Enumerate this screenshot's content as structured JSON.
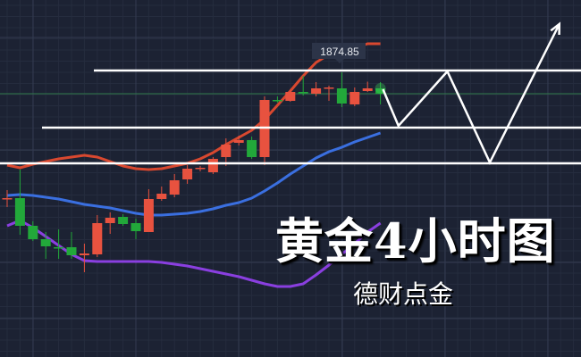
{
  "chart_data": {
    "type": "candlestick",
    "title": "黄金4小时图",
    "subtitle": "德财点金",
    "price_label": "1874.85",
    "current_price": 1865.25,
    "grid": true,
    "colors": {
      "background": "#1c2233",
      "up": "#e8523f",
      "down": "#22a83a",
      "upper_band": "#d9482f",
      "middle_band": "#3a6fe0",
      "lower_band": "#8a3fe0",
      "annotation": "#ffffff",
      "current_price_line": "#2f7a4a"
    },
    "candles": [
      {
        "o": 1818.05,
        "h": 1822.05,
        "l": 1814.45,
        "c": 1818.45
      },
      {
        "o": 1818.45,
        "h": 1831.25,
        "l": 1802.05,
        "c": 1806.05
      },
      {
        "o": 1806.05,
        "h": 1808.05,
        "l": 1799.25,
        "c": 1800.05
      },
      {
        "o": 1800.05,
        "h": 1803.25,
        "l": 1791.25,
        "c": 1796.85
      },
      {
        "o": 1796.45,
        "h": 1804.45,
        "l": 1791.25,
        "c": 1796.25
      },
      {
        "o": 1796.45,
        "h": 1803.25,
        "l": 1791.25,
        "c": 1792.85
      },
      {
        "o": 1792.85,
        "h": 1798.05,
        "l": 1785.25,
        "c": 1793.65
      },
      {
        "o": 1793.25,
        "h": 1810.85,
        "l": 1792.05,
        "c": 1807.25
      },
      {
        "o": 1807.25,
        "h": 1812.05,
        "l": 1802.45,
        "c": 1809.65
      },
      {
        "o": 1810.05,
        "h": 1811.25,
        "l": 1806.05,
        "c": 1806.85
      },
      {
        "o": 1807.25,
        "h": 1809.25,
        "l": 1800.05,
        "c": 1803.65
      },
      {
        "o": 1803.25,
        "h": 1822.45,
        "l": 1803.25,
        "c": 1818.05
      },
      {
        "o": 1818.05,
        "h": 1823.65,
        "l": 1817.25,
        "c": 1820.45
      },
      {
        "o": 1820.05,
        "h": 1829.25,
        "l": 1818.85,
        "c": 1826.45
      },
      {
        "o": 1826.85,
        "h": 1833.25,
        "l": 1824.85,
        "c": 1831.65
      },
      {
        "o": 1831.65,
        "h": 1832.85,
        "l": 1830.45,
        "c": 1832.05
      },
      {
        "o": 1830.05,
        "h": 1836.85,
        "l": 1829.25,
        "c": 1836.05
      },
      {
        "o": 1836.85,
        "h": 1845.25,
        "l": 1832.85,
        "c": 1842.45
      },
      {
        "o": 1843.25,
        "h": 1846.45,
        "l": 1842.05,
        "c": 1844.45
      },
      {
        "o": 1844.45,
        "h": 1846.05,
        "l": 1836.05,
        "c": 1836.85
      },
      {
        "o": 1836.85,
        "h": 1864.05,
        "l": 1833.25,
        "c": 1862.45
      },
      {
        "o": 1862.45,
        "h": 1864.05,
        "l": 1861.25,
        "c": 1862.05
      },
      {
        "o": 1862.05,
        "h": 1866.85,
        "l": 1861.65,
        "c": 1866.05
      },
      {
        "o": 1866.05,
        "h": 1873.25,
        "l": 1864.45,
        "c": 1865.65
      },
      {
        "o": 1865.25,
        "h": 1870.45,
        "l": 1864.05,
        "c": 1867.65
      },
      {
        "o": 1867.85,
        "h": 1868.85,
        "l": 1862.05,
        "c": 1868.05
      },
      {
        "o": 1867.65,
        "h": 1874.85,
        "l": 1859.25,
        "c": 1860.85
      },
      {
        "o": 1860.45,
        "h": 1868.05,
        "l": 1859.65,
        "c": 1866.05
      },
      {
        "o": 1866.45,
        "h": 1870.65,
        "l": 1866.05,
        "c": 1867.65
      },
      {
        "o": 1867.65,
        "h": 1870.45,
        "l": 1860.45,
        "c": 1865.25
      }
    ],
    "bands": {
      "upper": [
        1833.25,
        1832.05,
        1833.65,
        1834.85,
        1836.05,
        1836.85,
        1837.65,
        1836.85,
        1834.85,
        1832.85,
        1831.65,
        1831.25,
        1831.65,
        1832.85,
        1834.05,
        1836.05,
        1838.85,
        1842.45,
        1845.65,
        1848.85,
        1853.65,
        1860.05,
        1866.45,
        1873.25,
        1879.25,
        1882.85,
        1884.45,
        1885.65,
        1887.65,
        1887.65
      ],
      "middle": [
        1819.65,
        1820.05,
        1819.65,
        1818.85,
        1818.05,
        1816.85,
        1815.65,
        1814.85,
        1814.05,
        1812.85,
        1811.65,
        1810.85,
        1810.85,
        1811.25,
        1811.65,
        1812.45,
        1813.65,
        1815.25,
        1816.45,
        1818.45,
        1821.65,
        1825.25,
        1829.25,
        1832.85,
        1836.45,
        1839.25,
        1841.25,
        1843.65,
        1845.65,
        1847.65
      ],
      "lower": [
        1806.05,
        1808.45,
        1805.25,
        1801.25,
        1797.25,
        1793.25,
        1790.45,
        1790.05,
        1790.05,
        1790.05,
        1790.05,
        1790.05,
        1789.65,
        1788.85,
        1788.05,
        1786.85,
        1785.65,
        1784.45,
        1783.25,
        1781.65,
        1780.05,
        1778.85,
        1778.85,
        1780.05,
        1784.05,
        1788.45,
        1793.25,
        1798.05,
        1803.25,
        1807.25
      ]
    },
    "levels": [
      1875.65,
      1850.05,
      1834.05
    ],
    "projection": [
      {
        "bar": 29.2,
        "price": 1867.25
      },
      {
        "bar": 30.4,
        "price": 1850.85
      },
      {
        "bar": 34.2,
        "price": 1875.25
      },
      {
        "bar": 37.5,
        "price": 1834.45
      },
      {
        "bar": 42.9,
        "price": 1896.45
      }
    ]
  }
}
